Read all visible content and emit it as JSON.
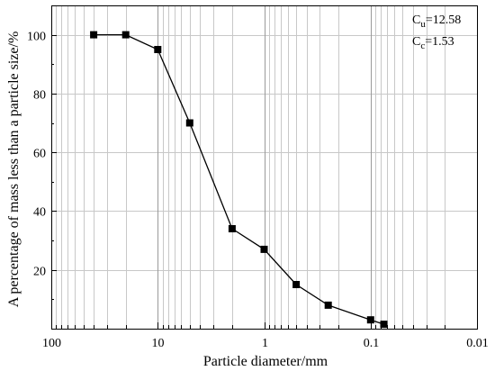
{
  "chart_data": {
    "type": "line",
    "xlabel": "Particle diameter/mm",
    "ylabel": "A percentage of mass less than a particle size/%",
    "x_scale": "log",
    "x_reversed": true,
    "xlim": [
      100,
      0.01
    ],
    "ylim": [
      0,
      110
    ],
    "x_ticks": [
      "100",
      "10",
      "1",
      "0.1",
      "0.01"
    ],
    "y_ticks": [
      "20",
      "40",
      "60",
      "80",
      "100"
    ],
    "grid": true,
    "series": [
      {
        "x": [
          40,
          20,
          10,
          5,
          2,
          1,
          0.5,
          0.25,
          0.1,
          0.075
        ],
        "y": [
          100,
          100,
          95,
          70,
          34,
          27,
          15,
          8,
          3,
          1.5
        ]
      }
    ],
    "annotations": [
      {
        "base": "C",
        "sub": "u",
        "text": "=12.58"
      },
      {
        "base": "C",
        "sub": "c",
        "text": "=1.53"
      }
    ]
  }
}
